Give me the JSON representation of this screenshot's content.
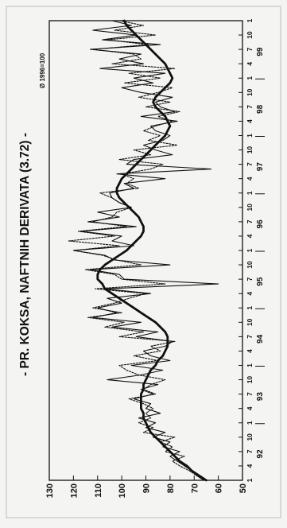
{
  "chart_data": {
    "type": "line",
    "title": "- PR. KOKSA, NAFTNIH DERIVATA (3.72) -",
    "base_note": "Ø 1996=100",
    "ylim": [
      50,
      130
    ],
    "yticks": [
      50,
      60,
      70,
      80,
      90,
      100,
      110,
      120,
      130
    ],
    "xlim": [
      1,
      97
    ],
    "years": [
      {
        "label": "92",
        "months": [
          "1",
          "4",
          "7",
          "10"
        ]
      },
      {
        "label": "93",
        "months": [
          "1",
          "4",
          "7",
          "10"
        ]
      },
      {
        "label": "94",
        "months": [
          "1",
          "4",
          "7",
          "10"
        ]
      },
      {
        "label": "95",
        "months": [
          "1",
          "4",
          "7",
          "10"
        ]
      },
      {
        "label": "96",
        "months": [
          "1",
          "4",
          "7",
          "10"
        ]
      },
      {
        "label": "97",
        "months": [
          "1",
          "4",
          "7",
          "10"
        ]
      },
      {
        "label": "98",
        "months": [
          "1",
          "4",
          "7",
          "10"
        ]
      },
      {
        "label": "99",
        "months": [
          "1",
          "4",
          "7",
          "10"
        ]
      },
      {
        "label": "",
        "months": [
          "1"
        ]
      }
    ],
    "grid": false,
    "series": [
      {
        "style": "dashed",
        "values": [
          65,
          69,
          72,
          76,
          79,
          74,
          82,
          79,
          84,
          78,
          91,
          87,
          93,
          88,
          90,
          87,
          91,
          97,
          86,
          91,
          88,
          82,
          93,
          98,
          101,
          85,
          95,
          84,
          88,
          78,
          101,
          91,
          107,
          99,
          114,
          100,
          112,
          103,
          97,
          90,
          111,
          82,
          100,
          103,
          115,
          92,
          102,
          108,
          120,
          101,
          122,
          103,
          118,
          98,
          112,
          104,
          102,
          96,
          101,
          104,
          109,
          93,
          98,
          95,
          100,
          88,
          83,
          101,
          88,
          95,
          77,
          89,
          84,
          91,
          86,
          79,
          85,
          76,
          90,
          80,
          93,
          85,
          79,
          99,
          84,
          97,
          78,
          104,
          92,
          95,
          112,
          89,
          106,
          86,
          103,
          91,
          101
        ]
      },
      {
        "style": "thin",
        "values": [
          66,
          69,
          71,
          74,
          77,
          80,
          76,
          83,
          80,
          87,
          82,
          90,
          86,
          93,
          84,
          90,
          88,
          95,
          87,
          92,
          85,
          106,
          92,
          83,
          96,
          80,
          88,
          91,
          82,
          79,
          94,
          85,
          104,
          92,
          112,
          102,
          110,
          100,
          106,
          88,
          107,
          60,
          99,
          101,
          113,
          80,
          103,
          107,
          120,
          95,
          104,
          100,
          117,
          94,
          114,
          101,
          110,
          96,
          101,
          104,
          105,
          95,
          99,
          82,
          102,
          63,
          98,
          95,
          79,
          86,
          91,
          83,
          80,
          86,
          88,
          77,
          92,
          78,
          84,
          86,
          79,
          92,
          100,
          87,
          95,
          82,
          109,
          91,
          101,
          92,
          113,
          84,
          108,
          94,
          112,
          96,
          104
        ]
      },
      {
        "style": "thick",
        "values": [
          65,
          68,
          71,
          73,
          76,
          78,
          80,
          82,
          84,
          86,
          88,
          89,
          90,
          91,
          91,
          92,
          92,
          92,
          92,
          91,
          91,
          90,
          89,
          88,
          86,
          85,
          83,
          82,
          81,
          81,
          81,
          82,
          84,
          86,
          89,
          92,
          95,
          98,
          101,
          104,
          107,
          108,
          110,
          110,
          109,
          107,
          104,
          101,
          98,
          96,
          94,
          92,
          91,
          91,
          92,
          93,
          95,
          97,
          99,
          101,
          102,
          102,
          101,
          100,
          98,
          96,
          94,
          92,
          90,
          88,
          86,
          84,
          82,
          81,
          80,
          81,
          82,
          84,
          86,
          87,
          86,
          84,
          82,
          80,
          79,
          80,
          81,
          82,
          84,
          86,
          88,
          90,
          92,
          94,
          96,
          98,
          99
        ]
      }
    ]
  }
}
